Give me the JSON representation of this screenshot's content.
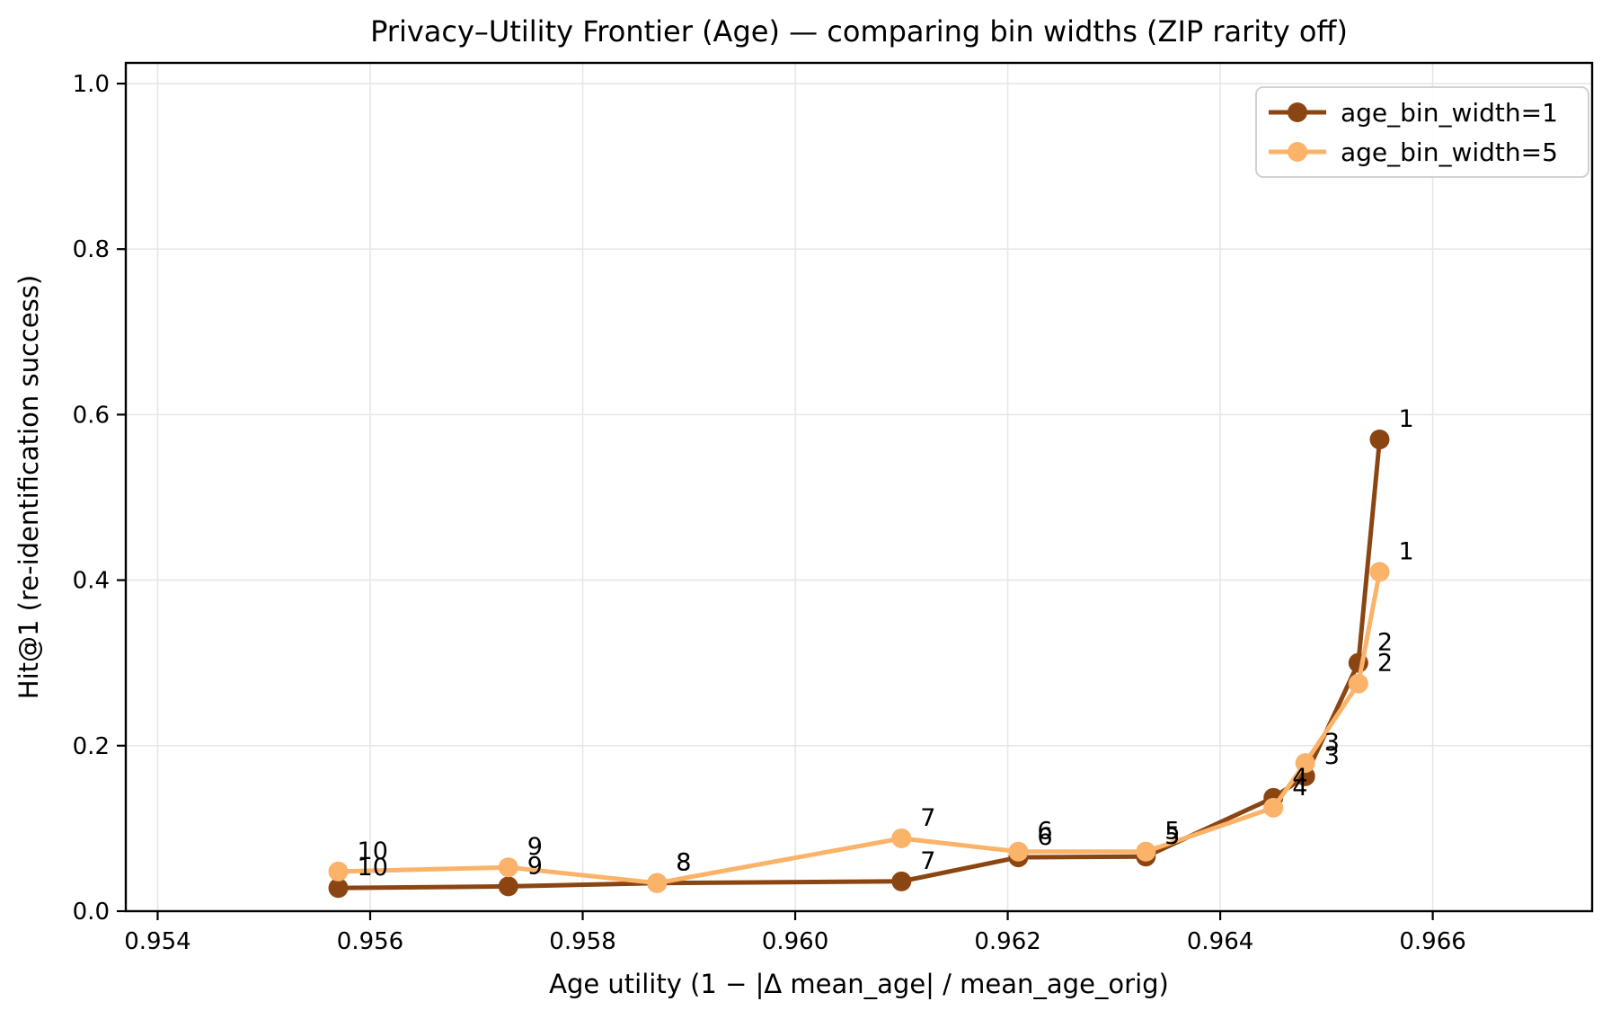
{
  "figure": {
    "background": "#FFFFFF"
  },
  "chart_data": {
    "type": "line",
    "title": "Privacy–Utility Frontier (Age) — comparing bin widths (ZIP rarity off)",
    "xlabel": "Age utility (1 − |Δ mean_age| / mean_age_orig)",
    "ylabel": "Hit@1 (re-identification success)",
    "xlim": [
      0.9537,
      0.9675
    ],
    "ylim": [
      0.0,
      1.025
    ],
    "xticks": [
      0.954,
      0.956,
      0.958,
      0.96,
      0.962,
      0.964,
      0.966
    ],
    "xtick_labels": [
      "0.954",
      "0.956",
      "0.958",
      "0.960",
      "0.962",
      "0.964",
      "0.966"
    ],
    "yticks": [
      0.0,
      0.2,
      0.4,
      0.6,
      0.8,
      1.0
    ],
    "ytick_labels": [
      "0.0",
      "0.2",
      "0.4",
      "0.6",
      "0.8",
      "1.0"
    ],
    "grid": true,
    "grid_color": "#E7E7E7",
    "axis_color": "#000000",
    "annotation_color": "#000000",
    "legend": {
      "position": "upper right",
      "entries": [
        "age_bin_width=1",
        "age_bin_width=5"
      ]
    },
    "series": [
      {
        "name": "age_bin_width=1",
        "color": "#8B4513",
        "points": [
          {
            "label": "10",
            "x": 0.9557,
            "y": 0.028
          },
          {
            "label": "9",
            "x": 0.9573,
            "y": 0.03
          },
          {
            "label": "8",
            "x": 0.9587,
            "y": 0.034
          },
          {
            "label": "7",
            "x": 0.961,
            "y": 0.036
          },
          {
            "label": "6",
            "x": 0.9621,
            "y": 0.065
          },
          {
            "label": "5",
            "x": 0.9633,
            "y": 0.066
          },
          {
            "label": "4",
            "x": 0.9645,
            "y": 0.137
          },
          {
            "label": "3",
            "x": 0.9648,
            "y": 0.163
          },
          {
            "label": "2",
            "x": 0.9653,
            "y": 0.3
          },
          {
            "label": "1",
            "x": 0.9655,
            "y": 0.57
          }
        ]
      },
      {
        "name": "age_bin_width=5",
        "color": "#FAB368",
        "points": [
          {
            "label": "10",
            "x": 0.9557,
            "y": 0.048
          },
          {
            "label": "9",
            "x": 0.9573,
            "y": 0.053
          },
          {
            "label": "8",
            "x": 0.9587,
            "y": 0.034
          },
          {
            "label": "7",
            "x": 0.961,
            "y": 0.088
          },
          {
            "label": "6",
            "x": 0.9621,
            "y": 0.072
          },
          {
            "label": "5",
            "x": 0.9633,
            "y": 0.072
          },
          {
            "label": "4",
            "x": 0.9645,
            "y": 0.125
          },
          {
            "label": "3",
            "x": 0.9648,
            "y": 0.179
          },
          {
            "label": "2",
            "x": 0.9653,
            "y": 0.275
          },
          {
            "label": "1",
            "x": 0.9655,
            "y": 0.41
          }
        ]
      }
    ]
  }
}
